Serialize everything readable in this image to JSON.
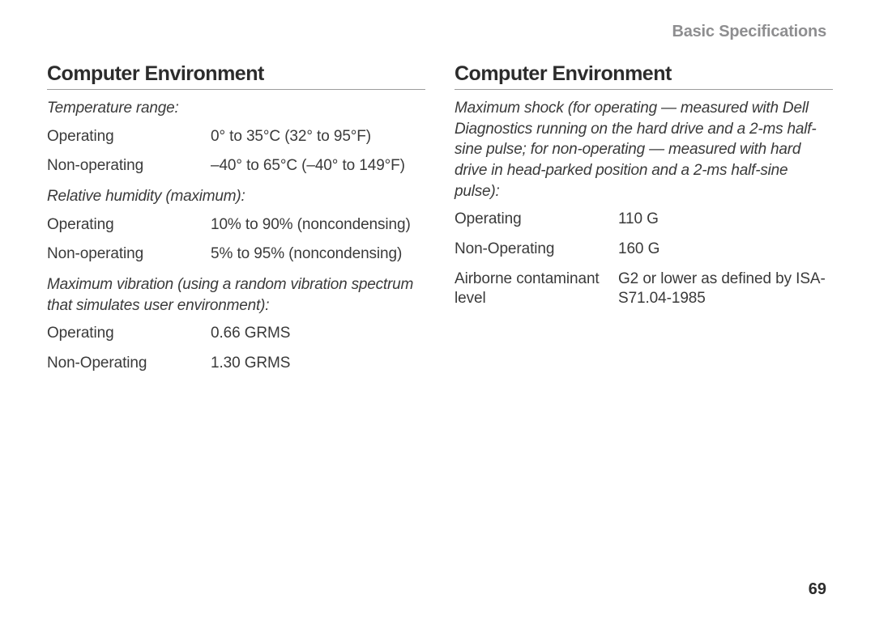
{
  "header": {
    "title": "Basic Specifications"
  },
  "page_number": "69",
  "left": {
    "heading": "Computer Environment",
    "temp": {
      "subheading": "Temperature range:",
      "operating_label": "Operating",
      "operating_value": "0° to 35°C (32° to 95°F)",
      "nonop_label": "Non-operating",
      "nonop_value": "–40° to 65°C (–40° to 149°F)"
    },
    "humidity": {
      "subheading": "Relative humidity (maximum):",
      "operating_label": "Operating",
      "operating_value": "10% to 90% (noncondensing)",
      "nonop_label": "Non-operating",
      "nonop_value": "5% to 95% (noncondensing)"
    },
    "vibration": {
      "subheading": "Maximum vibration (using a random vibration spectrum that simulates user environment):",
      "operating_label": "Operating",
      "operating_value": "0.66 GRMS",
      "nonop_label": "Non-Operating",
      "nonop_value": "1.30 GRMS"
    }
  },
  "right": {
    "heading": "Computer Environment",
    "shock": {
      "subheading": "Maximum shock (for operating — measured with Dell Diagnostics running on the hard drive and a 2-ms half-sine pulse; for non-operating — measured with hard drive in head-parked position and a 2-ms half-sine pulse):",
      "operating_label": "Operating",
      "operating_value": "110 G",
      "nonop_label": "Non-Operating",
      "nonop_value": "160 G",
      "airborne_label": "Airborne contaminant level",
      "airborne_value": "G2 or lower as defined by ISA-S71.04-1985"
    }
  }
}
